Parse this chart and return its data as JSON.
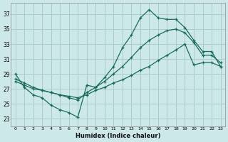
{
  "xlabel": "Humidex (Indice chaleur)",
  "background_color": "#cce8e8",
  "grid_color": "#aacccc",
  "line_color": "#1a6b5a",
  "x_ticks": [
    0,
    1,
    2,
    3,
    4,
    5,
    6,
    7,
    8,
    9,
    10,
    11,
    12,
    13,
    14,
    15,
    16,
    17,
    18,
    19,
    20,
    21,
    22,
    23
  ],
  "y_ticks": [
    23,
    25,
    27,
    29,
    31,
    33,
    35,
    37
  ],
  "xlim": [
    -0.5,
    23.5
  ],
  "ylim": [
    22.0,
    38.5
  ],
  "series": [
    {
      "x": [
        0,
        1,
        2,
        3,
        4,
        5,
        6,
        7,
        8,
        9,
        10,
        11,
        12,
        13,
        14,
        15,
        16,
        17,
        18,
        19,
        20,
        21,
        22,
        23
      ],
      "y": [
        29.0,
        27.2,
        26.2,
        25.8,
        24.8,
        24.2,
        23.8,
        23.2,
        27.5,
        27.2,
        28.5,
        30.0,
        32.5,
        34.2,
        36.5,
        37.6,
        36.5,
        36.3,
        36.3,
        35.2,
        33.5,
        32.0,
        32.0,
        30.0
      ]
    },
    {
      "x": [
        0,
        1,
        2,
        3,
        4,
        5,
        6,
        7,
        8,
        9,
        10,
        11,
        12,
        13,
        14,
        15,
        16,
        17,
        18,
        19,
        20,
        21,
        22,
        23
      ],
      "y": [
        28.3,
        27.8,
        27.2,
        26.8,
        26.5,
        26.2,
        25.8,
        25.5,
        26.5,
        27.2,
        28.0,
        29.0,
        30.0,
        31.2,
        32.5,
        33.5,
        34.2,
        34.8,
        35.0,
        34.5,
        33.2,
        31.5,
        31.5,
        30.5
      ]
    },
    {
      "x": [
        0,
        1,
        2,
        3,
        4,
        5,
        6,
        7,
        8,
        9,
        10,
        11,
        12,
        13,
        14,
        15,
        16,
        17,
        18,
        19,
        20,
        21,
        22,
        23
      ],
      "y": [
        28.0,
        27.5,
        27.0,
        26.8,
        26.5,
        26.2,
        26.0,
        25.8,
        26.2,
        26.8,
        27.2,
        27.8,
        28.2,
        28.8,
        29.5,
        30.0,
        30.8,
        31.5,
        32.2,
        33.0,
        30.2,
        30.5,
        30.5,
        30.0
      ]
    }
  ]
}
